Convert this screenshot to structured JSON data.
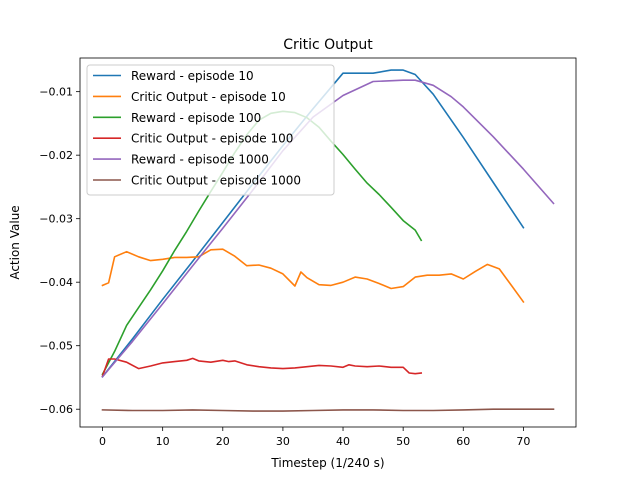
{
  "chart_data": {
    "type": "line",
    "title": "Critic Output",
    "xlabel": "Timestep (1/240 s)",
    "ylabel": "Action Value",
    "xlim": [
      -3.75,
      78.75
    ],
    "ylim": [
      -0.0628,
      -0.0047
    ],
    "xticks": [
      0,
      10,
      20,
      30,
      40,
      50,
      60,
      70
    ],
    "xtick_labels": [
      "0",
      "10",
      "20",
      "30",
      "40",
      "50",
      "60",
      "70"
    ],
    "yticks": [
      -0.06,
      -0.05,
      -0.04,
      -0.03,
      -0.02,
      -0.01
    ],
    "ytick_labels": [
      "−0.06",
      "−0.05",
      "−0.04",
      "−0.03",
      "−0.02",
      "−0.01"
    ],
    "grid": false,
    "legend_position": "top-left",
    "series": [
      {
        "name": "Reward - episode 10",
        "color": "#1f77b4",
        "x": [
          0,
          5,
          10,
          15,
          20,
          25,
          30,
          35,
          40,
          45,
          48,
          50,
          52,
          55,
          60,
          65,
          70
        ],
        "y": [
          -0.0549,
          -0.0489,
          -0.0427,
          -0.0367,
          -0.0306,
          -0.0245,
          -0.0185,
          -0.0127,
          -0.0071,
          -0.0071,
          -0.0066,
          -0.0066,
          -0.0073,
          -0.0104,
          -0.0172,
          -0.0243,
          -0.0314
        ]
      },
      {
        "name": "Critic Output - episode 10",
        "color": "#ff7f0e",
        "x": [
          0,
          1,
          2,
          4,
          6,
          8,
          10,
          12,
          14,
          16,
          18,
          20,
          22,
          24,
          26,
          28,
          30,
          32,
          33,
          34,
          36,
          38,
          40,
          42,
          44,
          46,
          48,
          50,
          52,
          54,
          56,
          58,
          60,
          62,
          64,
          66,
          68,
          70
        ],
        "y": [
          -0.0405,
          -0.0401,
          -0.036,
          -0.0352,
          -0.036,
          -0.0366,
          -0.0364,
          -0.0361,
          -0.0361,
          -0.036,
          -0.0349,
          -0.0348,
          -0.0359,
          -0.0374,
          -0.0373,
          -0.0378,
          -0.0387,
          -0.0406,
          -0.0384,
          -0.0393,
          -0.0404,
          -0.0405,
          -0.04,
          -0.0392,
          -0.0395,
          -0.0402,
          -0.041,
          -0.0407,
          -0.0392,
          -0.0389,
          -0.0389,
          -0.0387,
          -0.0395,
          -0.0383,
          -0.0372,
          -0.0379,
          -0.0405,
          -0.0431
        ]
      },
      {
        "name": "Reward - episode 100",
        "color": "#2ca02c",
        "x": [
          0,
          2,
          4,
          6,
          8,
          10,
          12,
          14,
          16,
          18,
          20,
          22,
          24,
          26,
          28,
          30,
          32,
          34,
          36,
          38,
          40,
          42,
          44,
          46,
          48,
          50,
          52,
          53
        ],
        "y": [
          -0.0545,
          -0.0509,
          -0.0468,
          -0.044,
          -0.0412,
          -0.0382,
          -0.035,
          -0.032,
          -0.0288,
          -0.0257,
          -0.0227,
          -0.0196,
          -0.0168,
          -0.0145,
          -0.0134,
          -0.0131,
          -0.0133,
          -0.0141,
          -0.0156,
          -0.0178,
          -0.0199,
          -0.0222,
          -0.0244,
          -0.0262,
          -0.0282,
          -0.0303,
          -0.0318,
          -0.0334
        ]
      },
      {
        "name": "Critic Output - episode 100",
        "color": "#d62728",
        "x": [
          0,
          1,
          2,
          4,
          6,
          8,
          10,
          12,
          14,
          15,
          16,
          18,
          20,
          21,
          22,
          24,
          26,
          28,
          30,
          32,
          34,
          36,
          38,
          40,
          41,
          42,
          44,
          46,
          48,
          50,
          51,
          52,
          53
        ],
        "y": [
          -0.0548,
          -0.0521,
          -0.0521,
          -0.0526,
          -0.0536,
          -0.0532,
          -0.0527,
          -0.0525,
          -0.0523,
          -0.052,
          -0.0524,
          -0.0526,
          -0.0523,
          -0.0525,
          -0.0524,
          -0.053,
          -0.0533,
          -0.0535,
          -0.0536,
          -0.0535,
          -0.0533,
          -0.0531,
          -0.0532,
          -0.0534,
          -0.053,
          -0.0532,
          -0.0533,
          -0.0532,
          -0.0534,
          -0.0534,
          -0.0543,
          -0.0544,
          -0.0543
        ]
      },
      {
        "name": "Reward - episode 1000",
        "color": "#9467bd",
        "x": [
          0,
          5,
          10,
          15,
          20,
          25,
          30,
          35,
          40,
          45,
          50,
          52,
          55,
          58,
          60,
          65,
          70,
          75
        ],
        "y": [
          -0.0549,
          -0.0493,
          -0.0434,
          -0.0374,
          -0.0315,
          -0.0255,
          -0.0193,
          -0.014,
          -0.0106,
          -0.0084,
          -0.0082,
          -0.0082,
          -0.009,
          -0.0108,
          -0.0124,
          -0.0171,
          -0.0222,
          -0.0276
        ]
      },
      {
        "name": "Critic Output - episode 1000",
        "color": "#8c564b",
        "x": [
          0,
          5,
          10,
          15,
          20,
          25,
          30,
          35,
          40,
          45,
          50,
          55,
          60,
          65,
          70,
          75
        ],
        "y": [
          -0.0601,
          -0.0602,
          -0.0602,
          -0.0601,
          -0.0602,
          -0.0603,
          -0.0603,
          -0.0602,
          -0.0601,
          -0.0601,
          -0.0602,
          -0.0602,
          -0.0601,
          -0.06,
          -0.06,
          -0.06
        ]
      }
    ]
  }
}
